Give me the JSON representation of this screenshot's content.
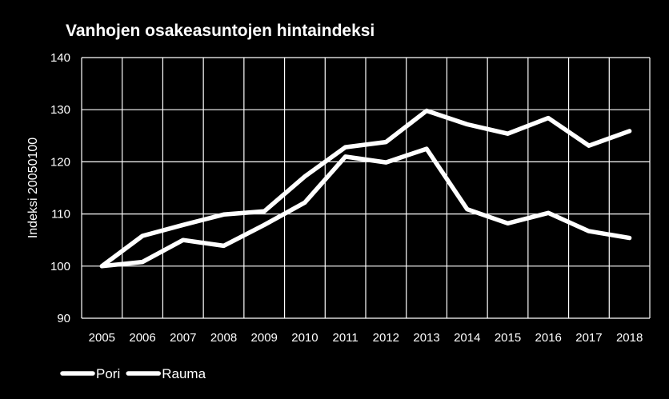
{
  "chart_data": {
    "type": "line",
    "title": "Vanhojen osakeasuntojen hintaindeksi",
    "ylabel": "Indeksi 20050100",
    "xlabel": "",
    "categories": [
      "2005",
      "2006",
      "2007",
      "2008",
      "2009",
      "2010",
      "2011",
      "2012",
      "2013",
      "2014",
      "2015",
      "2016",
      "2017",
      "2018"
    ],
    "ylim": [
      90,
      140
    ],
    "yticks": [
      90,
      100,
      110,
      120,
      130,
      140
    ],
    "grid": true,
    "legend_position": "bottom-left",
    "series": [
      {
        "name": "Pori",
        "color": "#ffffff",
        "values": [
          100,
          105.8,
          107.9,
          109.9,
          110.5,
          117.2,
          122.8,
          123.8,
          129.8,
          127.2,
          125.4,
          128.4,
          123.1,
          125.9
        ]
      },
      {
        "name": "Rauma",
        "color": "#ffffff",
        "values": [
          100,
          100.8,
          105.0,
          103.9,
          107.9,
          112.2,
          121.0,
          119.9,
          122.5,
          110.9,
          108.2,
          110.2,
          106.7,
          105.4
        ]
      }
    ]
  }
}
